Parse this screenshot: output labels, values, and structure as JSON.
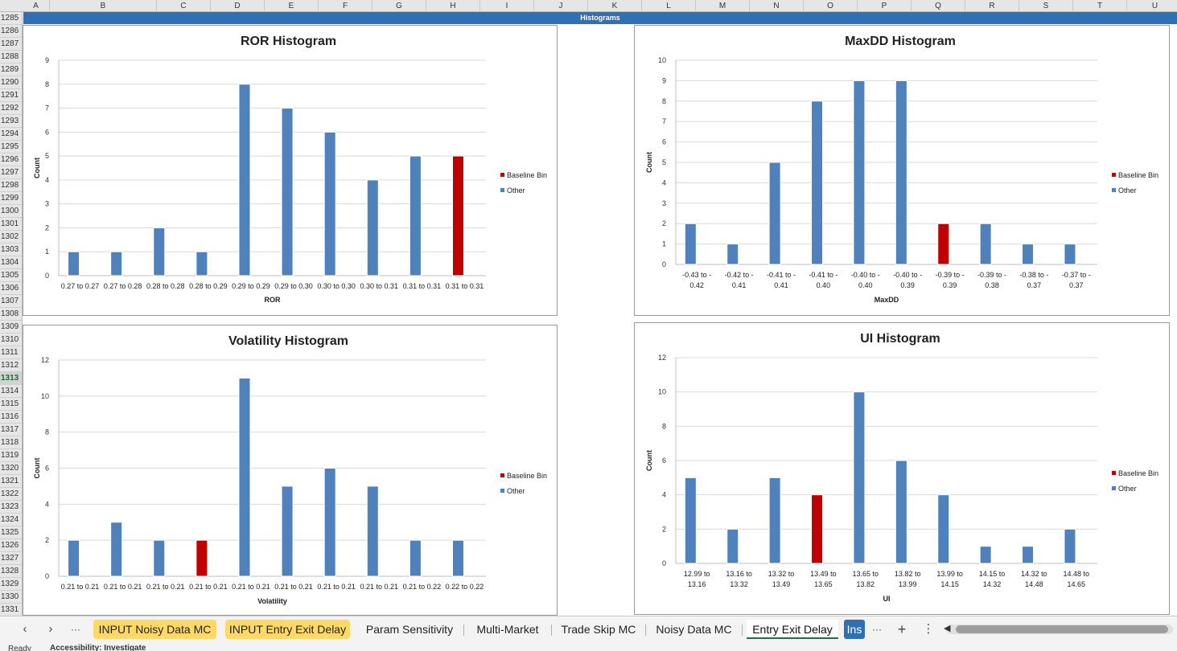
{
  "columns": [
    "A",
    "B",
    "C",
    "D",
    "E",
    "F",
    "G",
    "H",
    "I",
    "J",
    "K",
    "L",
    "M",
    "N",
    "O",
    "P",
    "Q",
    "R",
    "S",
    "T",
    "U"
  ],
  "rows": [
    "1285",
    "1286",
    "1287",
    "1288",
    "1289",
    "1290",
    "1291",
    "1292",
    "1293",
    "1294",
    "1295",
    "1296",
    "1297",
    "1298",
    "1299",
    "1300",
    "1301",
    "1302",
    "1303",
    "1304",
    "1305",
    "1306",
    "1307",
    "1308",
    "1309",
    "1310",
    "1311",
    "1312",
    "1313",
    "1314",
    "1315",
    "1316",
    "1317",
    "1318",
    "1319",
    "1320",
    "1321",
    "1322",
    "1323",
    "1324",
    "1325",
    "1326",
    "1327",
    "1328",
    "1329",
    "1330",
    "1331"
  ],
  "active_row": "1313",
  "band_title": "Histograms",
  "colors": {
    "baseline": "#c00000",
    "other": "#4f81bd",
    "grid": "#d9d9d9",
    "band": "#2f6fb3"
  },
  "chart_data": [
    {
      "id": "ror",
      "type": "bar",
      "title": "ROR Histogram",
      "xlabel": "ROR",
      "ylabel": "Count",
      "ylim": [
        0,
        9
      ],
      "yticks": [
        0,
        1,
        2,
        3,
        4,
        5,
        6,
        7,
        8,
        9
      ],
      "categories": [
        [
          "0.27 to 0.27"
        ],
        [
          "0.27 to 0.28"
        ],
        [
          "0.28 to 0.28"
        ],
        [
          "0.28 to 0.29"
        ],
        [
          "0.29 to 0.29"
        ],
        [
          "0.29 to 0.30"
        ],
        [
          "0.30 to 0.30"
        ],
        [
          "0.30 to 0.31"
        ],
        [
          "0.31 to 0.31"
        ],
        [
          "0.31 to 0.31"
        ]
      ],
      "series": [
        {
          "name": "Baseline Bin",
          "values": [
            0,
            0,
            0,
            0,
            0,
            0,
            0,
            0,
            0,
            5
          ]
        },
        {
          "name": "Other",
          "values": [
            1,
            1,
            2,
            1,
            8,
            7,
            6,
            4,
            5,
            0
          ]
        }
      ],
      "legend": [
        "Baseline Bin",
        "Other"
      ]
    },
    {
      "id": "maxdd",
      "type": "bar",
      "title": "MaxDD Histogram",
      "xlabel": "MaxDD",
      "ylabel": "Count",
      "ylim": [
        0,
        10
      ],
      "yticks": [
        0,
        1,
        2,
        3,
        4,
        5,
        6,
        7,
        8,
        9,
        10
      ],
      "categories": [
        [
          "-0.43 to -",
          "0.42"
        ],
        [
          "-0.42 to -",
          "0.41"
        ],
        [
          "-0.41 to -",
          "0.41"
        ],
        [
          "-0.41 to -",
          "0.40"
        ],
        [
          "-0.40 to -",
          "0.40"
        ],
        [
          "-0.40 to -",
          "0.39"
        ],
        [
          "-0.39 to -",
          "0.39"
        ],
        [
          "-0.39 to -",
          "0.38"
        ],
        [
          "-0.38 to -",
          "0.37"
        ],
        [
          "-0.37 to -",
          "0.37"
        ]
      ],
      "series": [
        {
          "name": "Baseline Bin",
          "values": [
            0,
            0,
            0,
            0,
            0,
            0,
            2,
            0,
            0,
            0
          ]
        },
        {
          "name": "Other",
          "values": [
            2,
            1,
            5,
            8,
            9,
            9,
            0,
            2,
            1,
            1
          ]
        }
      ],
      "legend": [
        "Baseline Bin",
        "Other"
      ]
    },
    {
      "id": "vol",
      "type": "bar",
      "title": "Volatility Histogram",
      "xlabel": "Volatility",
      "ylabel": "Count",
      "ylim": [
        0,
        12
      ],
      "yticks": [
        0,
        2,
        4,
        6,
        8,
        10,
        12
      ],
      "categories": [
        [
          "0.21 to 0.21"
        ],
        [
          "0.21 to 0.21"
        ],
        [
          "0.21 to 0.21"
        ],
        [
          "0.21 to 0.21"
        ],
        [
          "0.21 to 0.21"
        ],
        [
          "0.21 to 0.21"
        ],
        [
          "0.21 to 0.21"
        ],
        [
          "0.21 to 0.21"
        ],
        [
          "0.21 to 0.22"
        ],
        [
          "0.22 to 0.22"
        ]
      ],
      "series": [
        {
          "name": "Baseline Bin",
          "values": [
            0,
            0,
            0,
            2,
            0,
            0,
            0,
            0,
            0,
            0
          ]
        },
        {
          "name": "Other",
          "values": [
            2,
            3,
            2,
            0,
            11,
            5,
            6,
            5,
            2,
            2
          ]
        }
      ],
      "legend": [
        "Baseline Bin",
        "Other"
      ]
    },
    {
      "id": "ui",
      "type": "bar",
      "title": "UI Histogram",
      "xlabel": "UI",
      "ylabel": "Count",
      "ylim": [
        0,
        12
      ],
      "yticks": [
        0,
        2,
        4,
        6,
        8,
        10,
        12
      ],
      "categories": [
        [
          "12.99 to",
          "13.16"
        ],
        [
          "13.16 to",
          "13.32"
        ],
        [
          "13.32 to",
          "13.49"
        ],
        [
          "13.49 to",
          "13.65"
        ],
        [
          "13.65 to",
          "13.82"
        ],
        [
          "13.82 to",
          "13.99"
        ],
        [
          "13.99 to",
          "14.15"
        ],
        [
          "14.15 to",
          "14.32"
        ],
        [
          "14.32 to",
          "14.48"
        ],
        [
          "14.48 to",
          "14.65"
        ]
      ],
      "series": [
        {
          "name": "Baseline Bin",
          "values": [
            0,
            0,
            0,
            4,
            0,
            0,
            0,
            0,
            0,
            0
          ]
        },
        {
          "name": "Other",
          "values": [
            5,
            2,
            5,
            0,
            10,
            6,
            4,
            1,
            1,
            2
          ]
        }
      ],
      "legend": [
        "Baseline Bin",
        "Other"
      ]
    }
  ],
  "tabs": {
    "items": [
      {
        "label": "INPUT Noisy Data MC",
        "style": "yellow"
      },
      {
        "label": "INPUT Entry Exit Delay",
        "style": "yellow"
      },
      {
        "label": "Param Sensitivity",
        "style": "plain"
      },
      {
        "label": "Multi-Market",
        "style": "plain"
      },
      {
        "label": "Trade Skip MC",
        "style": "plain"
      },
      {
        "label": "Noisy Data MC",
        "style": "plain"
      },
      {
        "label": "Entry Exit Delay",
        "style": "active"
      },
      {
        "label": "Ins",
        "style": "blue"
      }
    ],
    "prev": "‹",
    "next": "›",
    "more_left": "···",
    "more_right": "···",
    "add": "+",
    "options": "⋮"
  },
  "status": {
    "ready": "Ready",
    "accessibility": "Accessibility: Investigate"
  }
}
